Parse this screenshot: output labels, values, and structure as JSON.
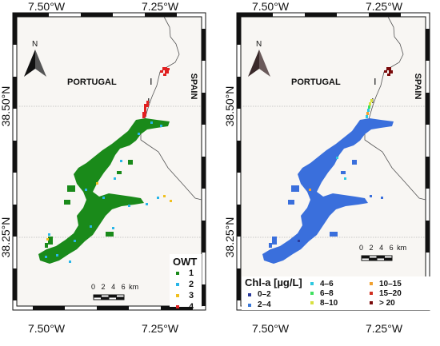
{
  "panels": [
    {
      "id": "owt",
      "coords": {
        "top_left": "7.50°W",
        "top_right": "7.25°W",
        "bottom_left": "7.50°W",
        "bottom_right": "7.25°W",
        "left_upper": "38.50°N",
        "left_lower": "38.25°N"
      },
      "country_labels": {
        "portugal": "PORTUGAL",
        "spain": "SPAIN"
      },
      "north_label": "N",
      "legend": {
        "title": "OWT",
        "entries": [
          {
            "label": "1",
            "color": "#1a8a1a"
          },
          {
            "label": "2",
            "color": "#29b6e8"
          },
          {
            "label": "3",
            "color": "#f0c020"
          },
          {
            "label": "4",
            "color": "#e02020"
          }
        ]
      },
      "scale_bar": {
        "ticks": [
          "0",
          "2",
          "4",
          "6"
        ],
        "unit": "km"
      },
      "arrow_color": "#111111"
    },
    {
      "id": "chla",
      "coords": {
        "top_left": "7.50°W",
        "top_right": "7.25°W",
        "bottom_left": "7.50°W",
        "bottom_right": "7.25°W",
        "left_upper": "38.50°N",
        "left_lower": "38.25°N"
      },
      "country_labels": {
        "portugal": "PORTUGAL",
        "spain": "SPAIN"
      },
      "north_label": "N",
      "legend": {
        "title": "Chl-a [µg/L]",
        "entries": [
          {
            "label": "0–2",
            "color": "#2a3a9a"
          },
          {
            "label": "2–4",
            "color": "#3a78d8"
          },
          {
            "label": "4–6",
            "color": "#2ec8e0"
          },
          {
            "label": "6–8",
            "color": "#40e060"
          },
          {
            "label": "8–10",
            "color": "#d8e040"
          },
          {
            "label": "10–15",
            "color": "#f0a030"
          },
          {
            "label": "15–20",
            "color": "#d03020"
          },
          {
            "label": "> 20",
            "color": "#7a0a0a"
          }
        ]
      },
      "scale_bar": {
        "ticks": [
          "0",
          "2",
          "4",
          "6"
        ],
        "unit": "km"
      },
      "arrow_color": "#3a2a2a"
    }
  ],
  "colors": {
    "land": "#f8f6f3",
    "border": "#111111",
    "grid": "#9a9a9a",
    "water_owt_main": "#1a8a1a",
    "water_chla_main": "#3a6fdc"
  }
}
